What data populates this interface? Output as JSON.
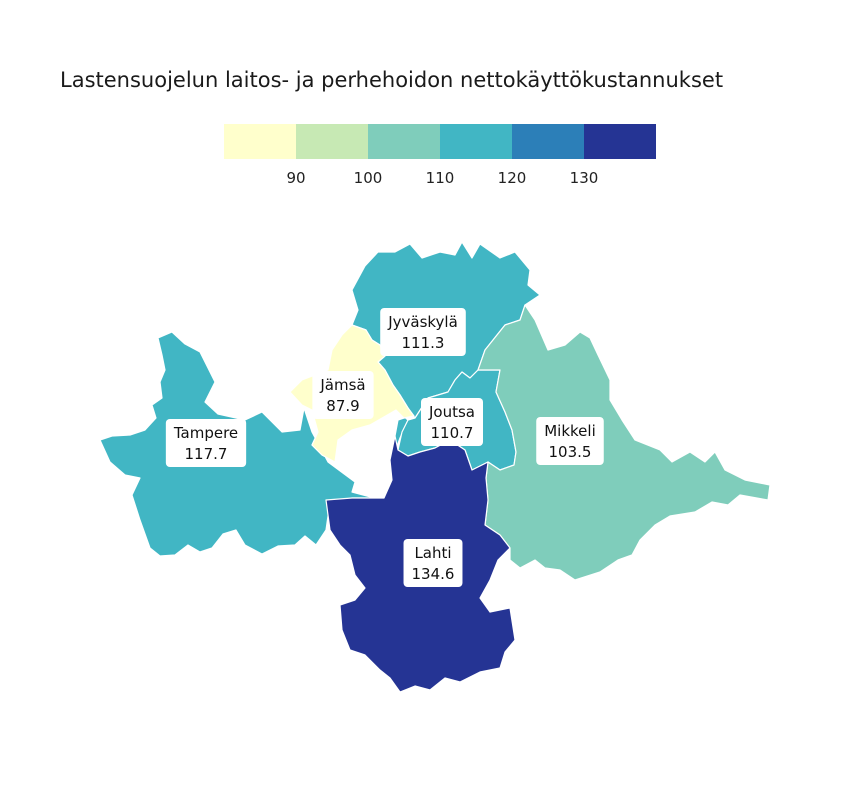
{
  "title": "Lastensuojelun laitos- ja perhehoidon nettokäyttökustannukset",
  "legend": {
    "ticks": [
      "90",
      "100",
      "110",
      "120",
      "130"
    ],
    "colors": [
      "#ffffcc",
      "#c7e9b4",
      "#7fcdbb",
      "#41b6c4",
      "#2c7fb8",
      "#253494"
    ]
  },
  "regions": [
    {
      "key": "jyvaskyla",
      "name": "Jyväskylä",
      "value": "111.3",
      "color": "#41b6c4"
    },
    {
      "key": "jamsa",
      "name": "Jämsä",
      "value": "87.9",
      "color": "#ffffcc"
    },
    {
      "key": "joutsa",
      "name": "Joutsa",
      "value": "110.7",
      "color": "#41b6c4"
    },
    {
      "key": "tampere",
      "name": "Tampere",
      "value": "117.7",
      "color": "#41b6c4"
    },
    {
      "key": "mikkeli",
      "name": "Mikkeli",
      "value": "103.5",
      "color": "#7fcdbb"
    },
    {
      "key": "lahti",
      "name": "Lahti",
      "value": "134.6",
      "color": "#253494"
    }
  ]
}
